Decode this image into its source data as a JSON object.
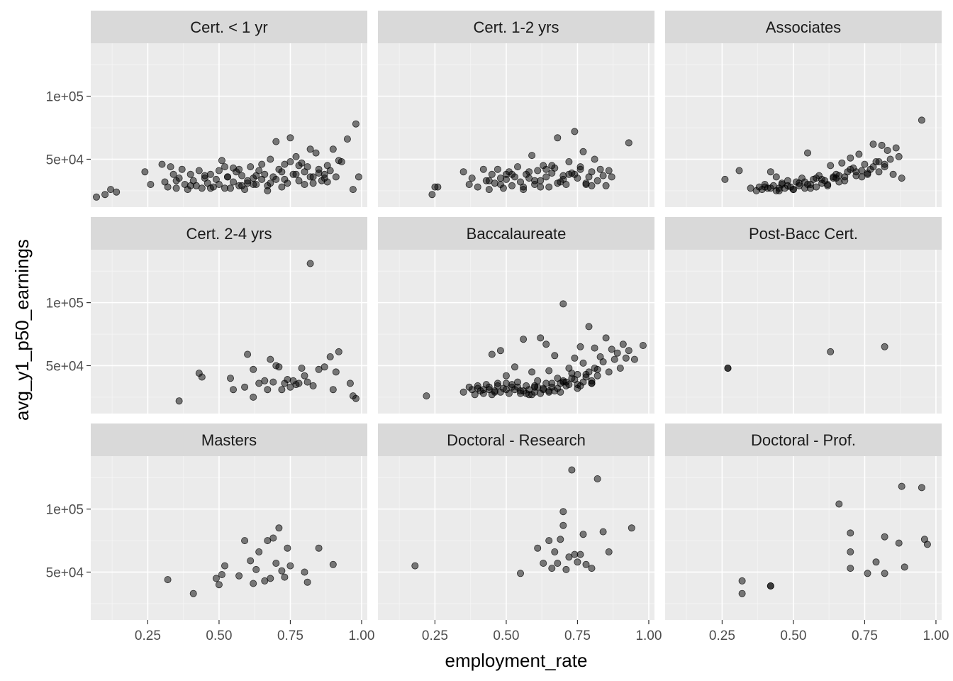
{
  "chart_data": {
    "type": "scatter",
    "layout": "facet_wrap",
    "xlabel": "employment_rate",
    "ylabel": "avg_y1_p50_earnings",
    "xlim": [
      0.05,
      1.02
    ],
    "ylim": [
      12000,
      142000
    ],
    "x_ticks": [
      0.25,
      0.5,
      0.75,
      1.0
    ],
    "x_tick_labels": [
      "0.25",
      "0.50",
      "0.75",
      "1.00"
    ],
    "y_ticks": [
      50000,
      100000
    ],
    "y_tick_labels": [
      "5e+04",
      "1e+05"
    ],
    "grid": true,
    "point_color": "#000000",
    "point_alpha": 0.5,
    "panel_background": "#ebebeb",
    "strip_background": "#d9d9d9",
    "facets": [
      {
        "label": "Cert. < 1 yr",
        "x": [
          0.07,
          0.1,
          0.12,
          0.14,
          0.24,
          0.26,
          0.3,
          0.31,
          0.32,
          0.33,
          0.34,
          0.35,
          0.36,
          0.37,
          0.38,
          0.39,
          0.4,
          0.41,
          0.42,
          0.43,
          0.44,
          0.45,
          0.46,
          0.47,
          0.48,
          0.49,
          0.5,
          0.51,
          0.52,
          0.53,
          0.54,
          0.55,
          0.56,
          0.57,
          0.58,
          0.59,
          0.6,
          0.61,
          0.62,
          0.63,
          0.64,
          0.65,
          0.66,
          0.67,
          0.68,
          0.69,
          0.7,
          0.71,
          0.72,
          0.73,
          0.74,
          0.75,
          0.76,
          0.77,
          0.78,
          0.79,
          0.8,
          0.81,
          0.82,
          0.83,
          0.84,
          0.85,
          0.86,
          0.87,
          0.88,
          0.89,
          0.9,
          0.91,
          0.93,
          0.95,
          0.97,
          0.98,
          0.99,
          0.52,
          0.55,
          0.6,
          0.65,
          0.7,
          0.75,
          0.8,
          0.85,
          0.88,
          0.45,
          0.5,
          0.58,
          0.62,
          0.68,
          0.72,
          0.78,
          0.82,
          0.35,
          0.4,
          0.47,
          0.53,
          0.57,
          0.63,
          0.67,
          0.73,
          0.77,
          0.83,
          0.87,
          0.92
        ],
        "y": [
          20000,
          22000,
          26000,
          24000,
          40000,
          30000,
          46000,
          32000,
          28000,
          44000,
          38000,
          27000,
          35000,
          42000,
          30000,
          26000,
          38000,
          33000,
          29000,
          41000,
          27000,
          35000,
          31000,
          38000,
          28000,
          34000,
          30000,
          49000,
          44000,
          36000,
          27000,
          32000,
          40000,
          29000,
          37000,
          26000,
          33000,
          44000,
          30000,
          37000,
          41000,
          34000,
          38000,
          29000,
          50000,
          36000,
          64000,
          42000,
          28000,
          34000,
          31000,
          67000,
          38000,
          52000,
          33000,
          47000,
          40000,
          44000,
          58000,
          36000,
          55000,
          42000,
          33000,
          38000,
          45000,
          41000,
          58000,
          36000,
          48000,
          66000,
          26000,
          78000,
          36000,
          27000,
          43000,
          31000,
          46000,
          34000,
          48000,
          30000,
          39000,
          32000,
          37000,
          41000,
          29000,
          35000,
          31000,
          40000,
          45000,
          36000,
          33000,
          29000,
          27000,
          36000,
          42000,
          30000,
          25000,
          46000,
          38000,
          31000,
          35000,
          49000
        ]
      },
      {
        "label": "Cert. 1-2 yrs",
        "x": [
          0.24,
          0.25,
          0.26,
          0.35,
          0.37,
          0.38,
          0.4,
          0.42,
          0.43,
          0.44,
          0.45,
          0.46,
          0.47,
          0.48,
          0.49,
          0.5,
          0.51,
          0.52,
          0.53,
          0.54,
          0.55,
          0.56,
          0.57,
          0.58,
          0.59,
          0.6,
          0.61,
          0.62,
          0.63,
          0.64,
          0.65,
          0.66,
          0.67,
          0.68,
          0.69,
          0.7,
          0.71,
          0.72,
          0.73,
          0.74,
          0.75,
          0.76,
          0.77,
          0.78,
          0.79,
          0.8,
          0.81,
          0.82,
          0.83,
          0.85,
          0.86,
          0.87,
          0.93,
          0.48,
          0.52,
          0.56,
          0.6,
          0.64,
          0.68,
          0.72,
          0.76,
          0.8,
          0.84,
          0.44,
          0.5,
          0.58,
          0.62,
          0.66,
          0.7,
          0.74,
          0.78
        ],
        "y": [
          22000,
          28000,
          28000,
          40000,
          30000,
          35000,
          28000,
          42000,
          33000,
          26000,
          38000,
          31000,
          42000,
          35000,
          27000,
          34000,
          40000,
          29000,
          36000,
          44000,
          32000,
          28000,
          38000,
          35000,
          53000,
          30000,
          41000,
          33000,
          45000,
          36000,
          28000,
          39000,
          43000,
          67000,
          32000,
          37000,
          30000,
          48000,
          39000,
          72000,
          35000,
          42000,
          56000,
          31000,
          36000,
          40000,
          50000,
          33000,
          42000,
          29000,
          41000,
          36000,
          63000,
          30000,
          38000,
          26000,
          33000,
          42000,
          31000,
          38000,
          44000,
          29000,
          37000,
          33000,
          38000,
          40000,
          28000,
          45000,
          34000,
          38000,
          30000
        ]
      },
      {
        "label": "Associates",
        "x": [
          0.26,
          0.31,
          0.35,
          0.37,
          0.38,
          0.39,
          0.4,
          0.41,
          0.42,
          0.43,
          0.44,
          0.45,
          0.46,
          0.47,
          0.48,
          0.49,
          0.5,
          0.51,
          0.52,
          0.53,
          0.54,
          0.55,
          0.56,
          0.57,
          0.58,
          0.59,
          0.6,
          0.61,
          0.62,
          0.63,
          0.64,
          0.65,
          0.66,
          0.67,
          0.68,
          0.69,
          0.7,
          0.71,
          0.72,
          0.73,
          0.74,
          0.75,
          0.76,
          0.77,
          0.78,
          0.79,
          0.8,
          0.81,
          0.82,
          0.83,
          0.84,
          0.85,
          0.86,
          0.87,
          0.88,
          0.95,
          0.42,
          0.46,
          0.5,
          0.54,
          0.58,
          0.62,
          0.66,
          0.7,
          0.74,
          0.78,
          0.82,
          0.4,
          0.44,
          0.48,
          0.52,
          0.56,
          0.6,
          0.64,
          0.68,
          0.72,
          0.76,
          0.8,
          0.45,
          0.55,
          0.65
        ],
        "y": [
          34000,
          41000,
          27000,
          25000,
          28000,
          26000,
          30000,
          27000,
          40000,
          29000,
          36000,
          25000,
          31000,
          27000,
          33000,
          28000,
          26000,
          32000,
          29000,
          35000,
          27000,
          55000,
          30000,
          34000,
          28000,
          37000,
          31000,
          33000,
          29000,
          45000,
          35000,
          38000,
          32000,
          47000,
          36000,
          40000,
          51000,
          43000,
          37000,
          54000,
          41000,
          46000,
          39000,
          42000,
          62000,
          48000,
          40000,
          61000,
          44000,
          57000,
          50000,
          38000,
          59000,
          52000,
          35000,
          81000,
          27000,
          30000,
          26000,
          32000,
          35000,
          30000,
          37000,
          42000,
          36000,
          44000,
          46000,
          28000,
          25000,
          29000,
          31000,
          27000,
          34000,
          36000,
          33000,
          40000,
          38000,
          48000,
          27000,
          30000,
          35000
        ]
      },
      {
        "label": "Cert. 2-4 yrs",
        "x": [
          0.36,
          0.43,
          0.44,
          0.54,
          0.55,
          0.59,
          0.6,
          0.62,
          0.64,
          0.66,
          0.67,
          0.68,
          0.69,
          0.7,
          0.71,
          0.72,
          0.73,
          0.74,
          0.75,
          0.76,
          0.77,
          0.78,
          0.79,
          0.8,
          0.81,
          0.82,
          0.83,
          0.85,
          0.87,
          0.89,
          0.9,
          0.91,
          0.92,
          0.96,
          0.97,
          0.98,
          0.62
        ],
        "y": [
          22000,
          44000,
          41000,
          40000,
          31000,
          33000,
          59000,
          47000,
          36000,
          38000,
          31000,
          55000,
          37000,
          50000,
          49000,
          31000,
          36000,
          39000,
          33000,
          38000,
          35000,
          36000,
          48000,
          42000,
          37000,
          131000,
          34000,
          47000,
          49000,
          57000,
          31000,
          45000,
          61000,
          36000,
          26000,
          24000,
          25000
        ]
      },
      {
        "label": "Baccalaureate",
        "x": [
          0.22,
          0.35,
          0.37,
          0.38,
          0.39,
          0.4,
          0.41,
          0.42,
          0.43,
          0.44,
          0.45,
          0.46,
          0.47,
          0.48,
          0.49,
          0.5,
          0.51,
          0.52,
          0.53,
          0.54,
          0.55,
          0.56,
          0.57,
          0.58,
          0.59,
          0.6,
          0.61,
          0.62,
          0.63,
          0.64,
          0.65,
          0.66,
          0.67,
          0.68,
          0.69,
          0.7,
          0.71,
          0.72,
          0.73,
          0.74,
          0.75,
          0.76,
          0.77,
          0.78,
          0.79,
          0.8,
          0.81,
          0.82,
          0.83,
          0.84,
          0.85,
          0.86,
          0.87,
          0.88,
          0.89,
          0.9,
          0.91,
          0.92,
          0.93,
          0.95,
          0.98,
          0.4,
          0.45,
          0.5,
          0.55,
          0.6,
          0.65,
          0.7,
          0.75,
          0.8,
          0.44,
          0.48,
          0.52,
          0.56,
          0.58,
          0.62,
          0.64,
          0.66,
          0.68,
          0.72,
          0.74,
          0.76,
          0.78,
          0.82,
          0.46,
          0.54,
          0.6,
          0.7,
          0.8,
          0.42,
          0.5,
          0.57,
          0.63,
          0.67,
          0.71,
          0.73,
          0.77,
          0.79,
          0.81,
          0.47,
          0.53,
          0.59,
          0.61,
          0.65,
          0.69,
          0.75
        ],
        "y": [
          26000,
          29000,
          33000,
          31000,
          27000,
          34000,
          30000,
          28000,
          35000,
          31000,
          59000,
          29000,
          36000,
          62000,
          32000,
          42000,
          28000,
          33000,
          49000,
          37000,
          30000,
          71000,
          34000,
          27000,
          45000,
          33000,
          38000,
          72000,
          31000,
          67000,
          46000,
          36000,
          58000,
          40000,
          29000,
          99000,
          37000,
          48000,
          44000,
          56000,
          35000,
          65000,
          52000,
          43000,
          81000,
          36000,
          64000,
          47000,
          57000,
          53000,
          72000,
          45000,
          63000,
          55000,
          60000,
          48000,
          67000,
          56000,
          62000,
          55000,
          66000,
          32000,
          27000,
          31000,
          28000,
          34000,
          30000,
          37000,
          32000,
          38000,
          33000,
          29000,
          35000,
          30000,
          31000,
          28000,
          36000,
          33000,
          32000,
          35000,
          39000,
          34000,
          41000,
          42000,
          30000,
          33000,
          29000,
          38000,
          36000,
          31000,
          36000,
          28000,
          32000,
          30000,
          34000,
          40000,
          37000,
          45000,
          48000,
          34000,
          31000,
          27000,
          33000,
          29000,
          36000,
          43000
        ]
      },
      {
        "label": "Post-Bacc Cert.",
        "x": [
          0.27,
          0.27,
          0.63,
          0.82
        ],
        "y": [
          48000,
          48000,
          61000,
          65000
        ]
      },
      {
        "label": "Masters",
        "x": [
          0.32,
          0.41,
          0.49,
          0.5,
          0.51,
          0.52,
          0.57,
          0.59,
          0.61,
          0.62,
          0.63,
          0.64,
          0.66,
          0.67,
          0.68,
          0.69,
          0.7,
          0.71,
          0.72,
          0.73,
          0.74,
          0.75,
          0.8,
          0.81,
          0.85,
          0.9
        ],
        "y": [
          44000,
          33000,
          45000,
          40000,
          48000,
          55000,
          47000,
          75000,
          59000,
          41000,
          52000,
          66000,
          43000,
          75000,
          45000,
          77000,
          57000,
          85000,
          51000,
          46000,
          69000,
          55000,
          50000,
          42000,
          69000,
          56000
        ]
      },
      {
        "label": "Doctoral - Research",
        "x": [
          0.18,
          0.55,
          0.61,
          0.63,
          0.65,
          0.66,
          0.67,
          0.68,
          0.69,
          0.7,
          0.7,
          0.71,
          0.72,
          0.73,
          0.74,
          0.75,
          0.76,
          0.77,
          0.78,
          0.8,
          0.82,
          0.84,
          0.86,
          0.94
        ],
        "y": [
          55000,
          49000,
          69000,
          57000,
          75000,
          53000,
          66000,
          57000,
          76000,
          98000,
          87000,
          52000,
          62000,
          131000,
          64000,
          58000,
          64000,
          80000,
          56000,
          53000,
          124000,
          82000,
          66000,
          85000
        ]
      },
      {
        "label": "Doctoral - Prof.",
        "x": [
          0.32,
          0.32,
          0.42,
          0.42,
          0.66,
          0.7,
          0.7,
          0.7,
          0.76,
          0.79,
          0.82,
          0.82,
          0.87,
          0.88,
          0.89,
          0.95,
          0.96,
          0.97
        ],
        "y": [
          43000,
          33000,
          39000,
          39000,
          104000,
          81000,
          66000,
          53000,
          49000,
          58000,
          78000,
          49000,
          73000,
          118000,
          54000,
          117000,
          76000,
          72000
        ]
      }
    ]
  }
}
